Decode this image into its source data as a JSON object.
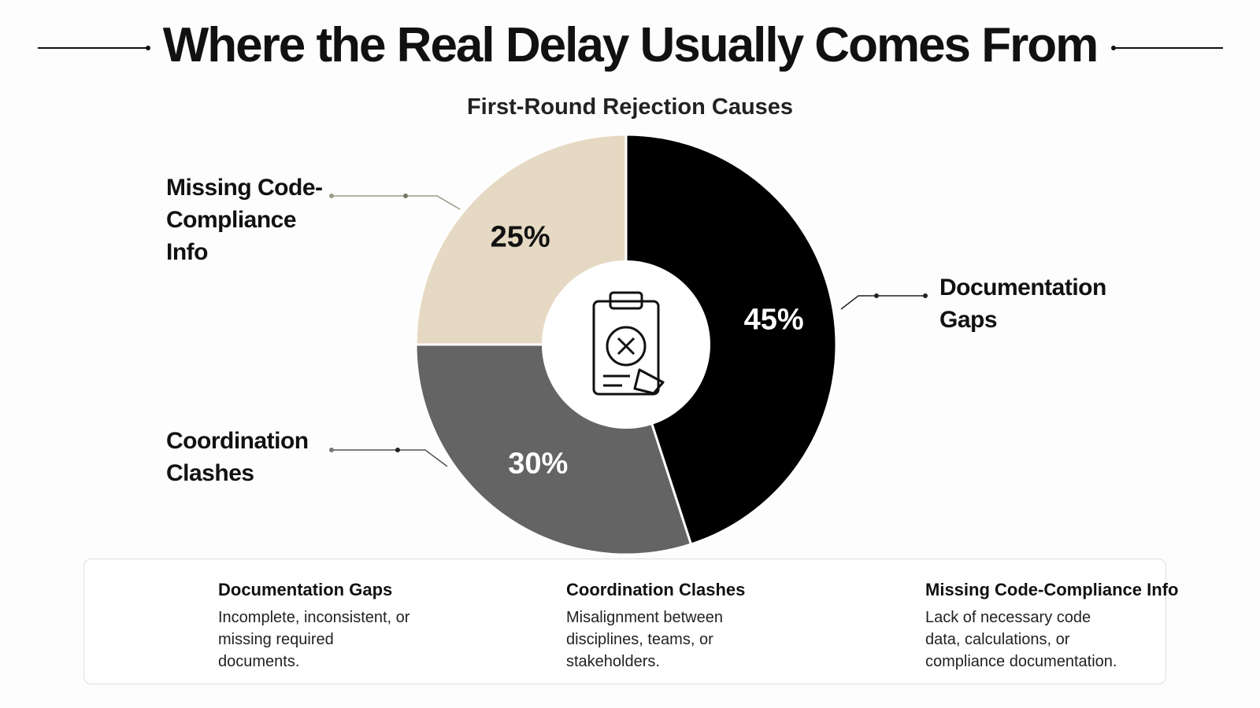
{
  "chart_data": {
    "type": "pie",
    "title": "Where the Real Delay Usually Comes From",
    "subtitle": "First-Round Rejection Causes",
    "categories": [
      "Documentation Gaps",
      "Coordination Clashes",
      "Missing Code-Compliance Info"
    ],
    "values": [
      45,
      30,
      25
    ],
    "value_labels": [
      "45%",
      "30%",
      "25%"
    ],
    "colors": [
      "#000000",
      "#646464",
      "#e6d9c3"
    ],
    "descriptions": [
      "Incomplete, inconsistent, or missing required documents.",
      "Misalignment between disciplines, teams, or stakeholders.",
      "Lack of necessary code data, calculations, or compliance documentation."
    ]
  }
}
